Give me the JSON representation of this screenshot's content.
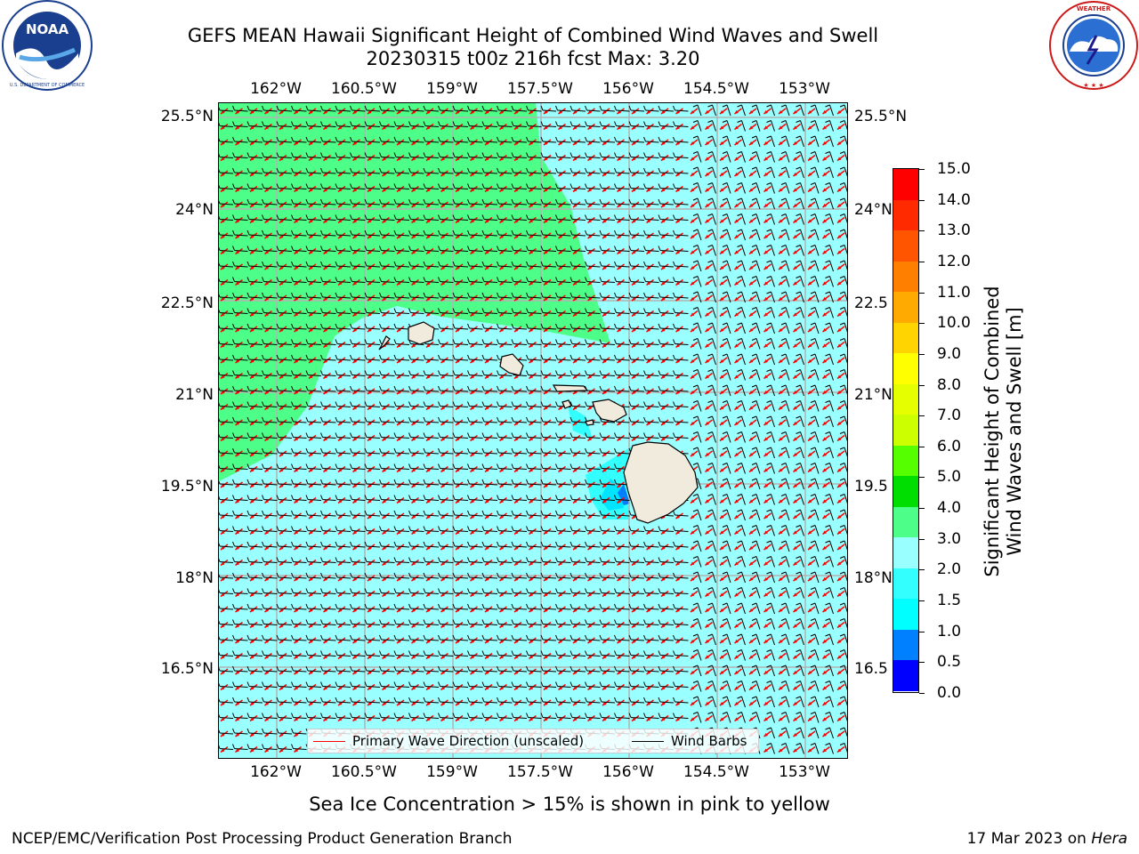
{
  "header": {
    "title_line1": "GEFS MEAN Hawaii Significant Height of Combined Wind Waves and Swell",
    "title_line2": "20230315 t00z 216h fcst   Max: 3.20"
  },
  "logos": {
    "left": {
      "icon": "noaa-logo",
      "text": "NOAA",
      "ring_text": "NATIONAL OCEANIC AND ATMOSPHERIC ADMINISTRATION · U.S. DEPARTMENT OF COMMERCE"
    },
    "right": {
      "icon": "nws-logo",
      "ring_text": "NATIONAL WEATHER SERVICE"
    }
  },
  "map": {
    "lon_ticks": [
      "162°W",
      "160.5°W",
      "159°W",
      "157.5°W",
      "156°W",
      "154.5°W",
      "153°W"
    ],
    "lat_ticks_left": [
      "25.5°N",
      "24°N",
      "22.5°N",
      "21°N",
      "19.5°N",
      "18°N",
      "16.5°N"
    ],
    "lat_ticks_right": [
      "25.5°N",
      "24°N",
      "22.5",
      "21°N",
      "19.5",
      "18°N",
      "16.5"
    ],
    "lon_values": [
      -162,
      -160.5,
      -159,
      -157.5,
      -156,
      -154.5,
      -153
    ],
    "lat_values": [
      25.5,
      24,
      22.5,
      21,
      19.5,
      18,
      16.5
    ],
    "colors": {
      "ocean_2_3": "#99ffff",
      "ocean_3_4": "#4dff88",
      "ocean_1_5_2": "#33ffff",
      "ocean_1_1_5": "#00e5ff",
      "ocean_0_5_1": "#0080ff",
      "land": "#f0ebdc",
      "wave_arrow": "#ff0000",
      "wind_barb": "#000000",
      "grid": "#b3b3b3"
    }
  },
  "legend": {
    "wave_label": "Primary Wave Direction (unscaled)",
    "barb_label": "Wind Barbs"
  },
  "colorbar": {
    "title_line1": "Significant Height of Combined",
    "title_line2": "Wind Waves and Swell [m]",
    "levels": [
      "15.0",
      "14.0",
      "13.0",
      "12.0",
      "11.0",
      "10.0",
      "9.0",
      "8.0",
      "7.0",
      "6.0",
      "5.0",
      "4.0",
      "3.0",
      "2.0",
      "1.5",
      "1.0",
      "0.5",
      "0.0"
    ],
    "colors": [
      "#ff0000",
      "#ff2a00",
      "#ff5500",
      "#ff8000",
      "#ffaa00",
      "#ffd400",
      "#ffff00",
      "#e6ff00",
      "#ccff00",
      "#55ff00",
      "#00dd00",
      "#4dff88",
      "#99ffff",
      "#33ffff",
      "#00ffff",
      "#0080ff",
      "#0000ff"
    ]
  },
  "footer": {
    "note": "Sea Ice Concentration > 15% is shown in pink to yellow",
    "credit": "NCEP/EMC/Verification Post Processing Product Generation Branch",
    "date_prefix": "17 Mar 2023 on ",
    "date_host": "Hera"
  }
}
